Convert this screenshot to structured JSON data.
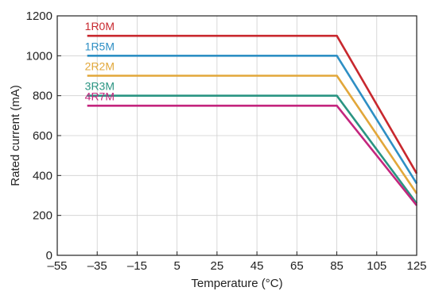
{
  "chart_data": {
    "type": "line",
    "title": "",
    "xlabel": "Temperature (°C)",
    "ylabel": "Rated current (mA)",
    "xlim": [
      -55,
      125
    ],
    "ylim": [
      0,
      1200
    ],
    "xticks": [
      -55,
      -35,
      -15,
      5,
      25,
      45,
      65,
      85,
      105,
      125
    ],
    "xtick_labels": [
      "–55",
      "–35",
      "–15",
      "5",
      "25",
      "45",
      "65",
      "85",
      "105",
      "125"
    ],
    "yticks": [
      0,
      200,
      400,
      600,
      800,
      1000,
      1200
    ],
    "ytick_labels": [
      "0",
      "200",
      "400",
      "600",
      "800",
      "1000",
      "1200"
    ],
    "grid": true,
    "series": [
      {
        "name": "1R0M",
        "color": "#c8282e",
        "x": [
          -40,
          85,
          125
        ],
        "y": [
          1100,
          1100,
          410
        ]
      },
      {
        "name": "1R5M",
        "color": "#2e8fc4",
        "x": [
          -40,
          85,
          125
        ],
        "y": [
          1000,
          1000,
          360
        ]
      },
      {
        "name": "2R2M",
        "color": "#e2a73a",
        "x": [
          -40,
          85,
          125
        ],
        "y": [
          900,
          900,
          310
        ]
      },
      {
        "name": "3R3M",
        "color": "#2a9482",
        "x": [
          -40,
          85,
          125
        ],
        "y": [
          800,
          800,
          260
        ]
      },
      {
        "name": "4R7M",
        "color": "#c4267e",
        "x": [
          -40,
          85,
          125
        ],
        "y": [
          750,
          750,
          250
        ]
      }
    ]
  }
}
